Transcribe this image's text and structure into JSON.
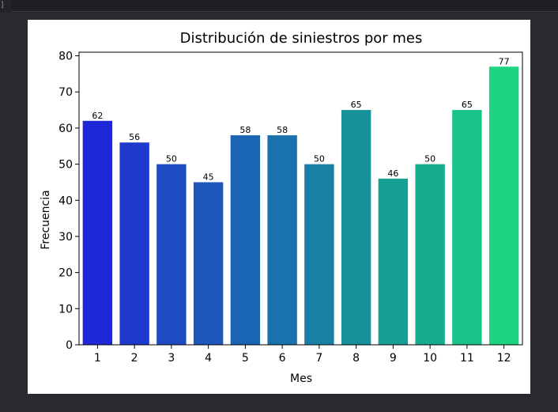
{
  "cell": {
    "bracket": "]"
  },
  "chart_data": {
    "type": "bar",
    "title": "Distribución de siniestros por mes",
    "xlabel": "Mes",
    "ylabel": "Frecuencia",
    "categories": [
      "1",
      "2",
      "3",
      "4",
      "5",
      "6",
      "7",
      "8",
      "9",
      "10",
      "11",
      "12"
    ],
    "values": [
      62,
      56,
      50,
      45,
      58,
      58,
      50,
      65,
      46,
      50,
      65,
      77
    ],
    "data_labels": [
      "62",
      "56",
      "50",
      "45",
      "58",
      "58",
      "50",
      "65",
      "46",
      "50",
      "65",
      "77"
    ],
    "yticks": [
      0,
      10,
      20,
      30,
      40,
      50,
      60,
      70,
      80
    ],
    "ylim": [
      0,
      81
    ],
    "colors": [
      "#1e28d8",
      "#1e3acd",
      "#1e4bc4",
      "#1d57bb",
      "#1b66b4",
      "#1a72ad",
      "#1880a4",
      "#16909b",
      "#15a093",
      "#16ac8c",
      "#18c387",
      "#1dd480"
    ],
    "grid": false,
    "legend": "none"
  }
}
